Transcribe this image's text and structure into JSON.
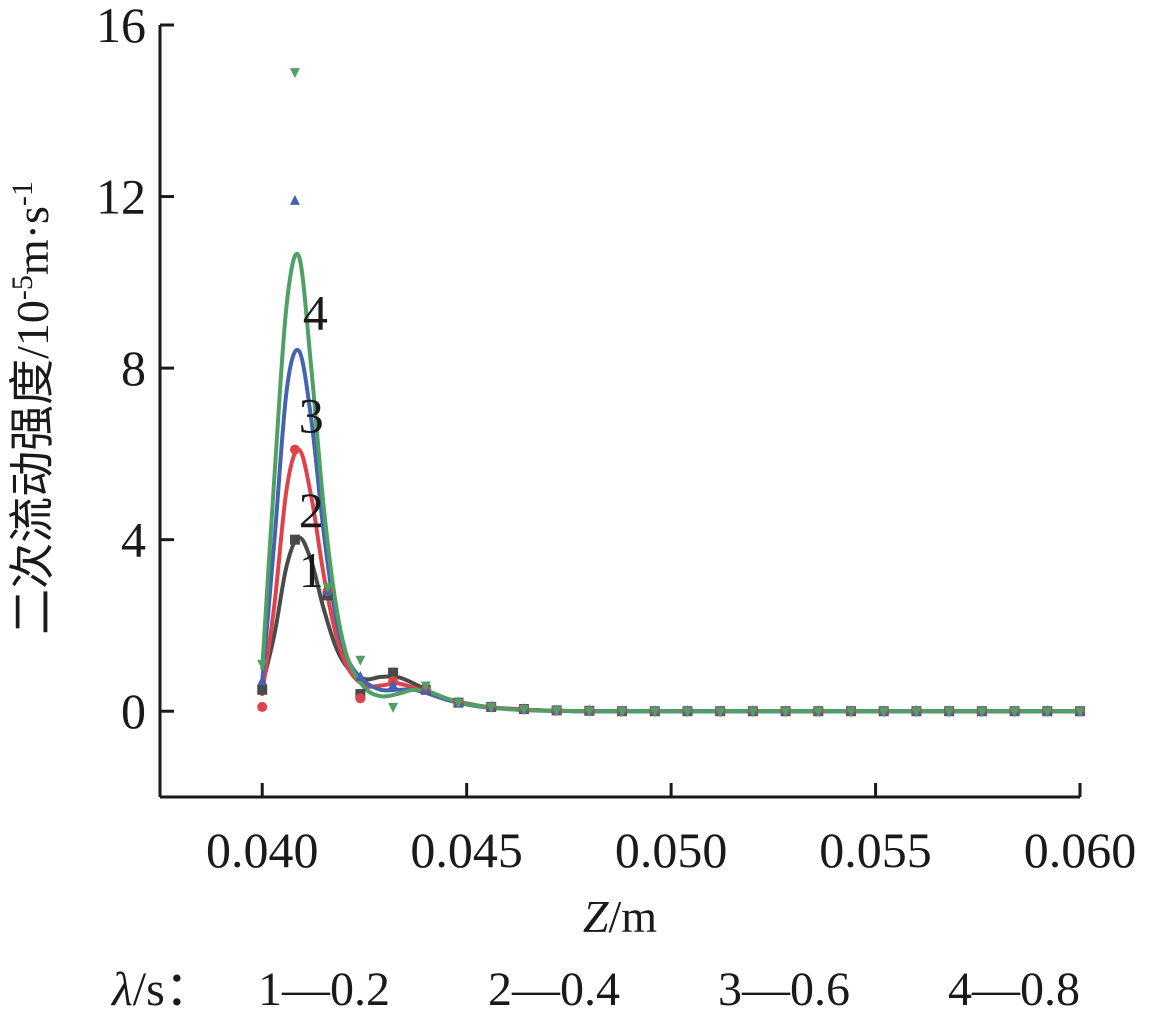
{
  "chart_data": {
    "type": "line",
    "title": "",
    "xlabel": {
      "italic": "Z",
      "rest": "/m"
    },
    "ylabel": {
      "main": "二次流动强度/10",
      "exp1": "-5",
      "mid": "m·s",
      "exp2": "-1"
    },
    "xlim": [
      0.0375,
      0.06
    ],
    "ylim": [
      -2,
      16
    ],
    "xticks": [
      0.04,
      0.045,
      0.05,
      0.055,
      0.06
    ],
    "xtick_labels": [
      "0.040",
      "0.045",
      "0.050",
      "0.055",
      "0.060"
    ],
    "yticks": [
      0,
      4,
      8,
      12,
      16
    ],
    "ytick_labels": [
      "0",
      "4",
      "8",
      "12",
      "16"
    ],
    "legend": {
      "prefix_italic": "λ",
      "prefix_rest": "/s：",
      "entries": [
        "1—0.2",
        "2—0.4",
        "3—0.6",
        "4—0.8"
      ]
    },
    "series": [
      {
        "label": "1",
        "label_pos": [
          0.0412,
          2.9
        ],
        "color": "#4a4a4a",
        "marker": "square",
        "points_x": [
          0.04,
          0.0408,
          0.0416,
          0.0424,
          0.0432,
          0.044,
          0.0448,
          0.0456,
          0.0464,
          0.0472,
          0.048,
          0.0488,
          0.0496,
          0.0504,
          0.0512,
          0.052,
          0.0528,
          0.0536,
          0.0544,
          0.0552,
          0.056,
          0.0568,
          0.0576,
          0.0584,
          0.0592,
          0.06
        ],
        "points_y": [
          0.5,
          4.0,
          2.7,
          0.4,
          0.9,
          0.5,
          0.2,
          0.1,
          0.05,
          0.02,
          0.01,
          0,
          0,
          0,
          0,
          0,
          0,
          0,
          0,
          0,
          0,
          0,
          0,
          0,
          0,
          0
        ],
        "curve_x": [
          0.04,
          0.0403,
          0.0406,
          0.0409,
          0.0412,
          0.0415,
          0.0418,
          0.0421,
          0.0425,
          0.0429,
          0.0433,
          0.0437,
          0.0441,
          0.0445,
          0.045,
          0.0455,
          0.046,
          0.0466,
          0.0472,
          0.048,
          0.05,
          0.053,
          0.056,
          0.06
        ],
        "curve_y": [
          0.6,
          1.8,
          3.4,
          4.05,
          3.5,
          2.4,
          1.5,
          1.0,
          0.75,
          0.8,
          0.8,
          0.65,
          0.45,
          0.3,
          0.18,
          0.1,
          0.06,
          0.03,
          0.01,
          0,
          0,
          0,
          0,
          0
        ]
      },
      {
        "label": "2",
        "label_pos": [
          0.0412,
          4.3
        ],
        "color": "#e0424a",
        "marker": "circle",
        "points_x": [
          0.04,
          0.0408,
          0.0416,
          0.0424,
          0.0432,
          0.044,
          0.0448,
          0.0456,
          0.0464,
          0.0472,
          0.048,
          0.0488,
          0.0496,
          0.0504,
          0.0512,
          0.052,
          0.0528,
          0.0536,
          0.0544,
          0.0552,
          0.056,
          0.0568,
          0.0576,
          0.0584,
          0.0592,
          0.06
        ],
        "points_y": [
          0.1,
          6.1,
          2.8,
          0.3,
          0.7,
          0.5,
          0.2,
          0.1,
          0.05,
          0.02,
          0.01,
          0,
          0,
          0,
          0,
          0,
          0,
          0,
          0,
          0,
          0,
          0,
          0,
          0,
          0,
          0
        ],
        "curve_x": [
          0.04,
          0.0403,
          0.0406,
          0.0409,
          0.0412,
          0.0415,
          0.0418,
          0.0421,
          0.0425,
          0.0429,
          0.0433,
          0.0437,
          0.0441,
          0.0445,
          0.045,
          0.0455,
          0.046,
          0.0466,
          0.0472,
          0.048,
          0.05,
          0.053,
          0.056,
          0.06
        ],
        "curve_y": [
          0.4,
          2.5,
          5.2,
          6.1,
          5.0,
          3.2,
          1.8,
          1.0,
          0.6,
          0.6,
          0.65,
          0.55,
          0.4,
          0.28,
          0.17,
          0.1,
          0.06,
          0.03,
          0.01,
          0,
          0,
          0,
          0,
          0
        ]
      },
      {
        "label": "3",
        "label_pos": [
          0.0412,
          6.5
        ],
        "color": "#4463b0",
        "marker": "triangle-up",
        "points_x": [
          0.04,
          0.0408,
          0.0416,
          0.0424,
          0.0432,
          0.044,
          0.0448,
          0.0456,
          0.0464,
          0.0472,
          0.048,
          0.0488,
          0.0496,
          0.0504,
          0.0512,
          0.052,
          0.0528,
          0.0536,
          0.0544,
          0.0552,
          0.056,
          0.0568,
          0.0576,
          0.0584,
          0.0592,
          0.06
        ],
        "points_y": [
          0.7,
          11.9,
          2.8,
          0.8,
          0.6,
          0.5,
          0.2,
          0.1,
          0.05,
          0.02,
          0.01,
          0,
          0,
          0,
          0,
          0,
          0,
          0,
          0,
          0,
          0,
          0,
          0,
          0,
          0,
          0
        ],
        "curve_x": [
          0.04,
          0.0403,
          0.0406,
          0.0409,
          0.0412,
          0.0415,
          0.0418,
          0.0421,
          0.0425,
          0.0429,
          0.0433,
          0.0437,
          0.0441,
          0.0445,
          0.045,
          0.0455,
          0.046,
          0.0466,
          0.0472,
          0.048,
          0.05,
          0.053,
          0.056,
          0.06
        ],
        "curve_y": [
          0.7,
          4.0,
          7.5,
          8.4,
          6.8,
          4.2,
          2.2,
          1.2,
          0.7,
          0.5,
          0.5,
          0.5,
          0.4,
          0.27,
          0.16,
          0.09,
          0.05,
          0.02,
          0.01,
          0,
          0,
          0,
          0,
          0
        ]
      },
      {
        "label": "4",
        "label_pos": [
          0.0413,
          8.9
        ],
        "color": "#4fa064",
        "marker": "triangle-down",
        "points_x": [
          0.04,
          0.0408,
          0.0416,
          0.0424,
          0.0432,
          0.044,
          0.0448,
          0.0456,
          0.0464,
          0.0472,
          0.048,
          0.0488,
          0.0496,
          0.0504,
          0.0512,
          0.052,
          0.0528,
          0.0536,
          0.0544,
          0.0552,
          0.056,
          0.0568,
          0.0576,
          0.0584,
          0.0592,
          0.06
        ],
        "points_y": [
          1.1,
          14.9,
          2.9,
          1.2,
          0.1,
          0.6,
          0.2,
          0.1,
          0.05,
          0.02,
          0.01,
          0,
          0,
          0,
          0,
          0,
          0,
          0,
          0,
          0,
          0,
          0,
          0,
          0,
          0,
          0
        ],
        "curve_x": [
          0.04,
          0.0403,
          0.0406,
          0.0409,
          0.0412,
          0.0415,
          0.0418,
          0.0421,
          0.0425,
          0.0429,
          0.0433,
          0.0437,
          0.0441,
          0.0445,
          0.045,
          0.0455,
          0.046,
          0.0466,
          0.0472,
          0.048,
          0.05,
          0.053,
          0.056,
          0.06
        ],
        "curve_y": [
          1.0,
          5.5,
          9.5,
          10.6,
          8.0,
          4.8,
          2.5,
          1.2,
          0.55,
          0.35,
          0.4,
          0.5,
          0.45,
          0.3,
          0.17,
          0.1,
          0.05,
          0.02,
          0.01,
          0,
          0,
          0,
          0,
          0
        ]
      }
    ]
  }
}
